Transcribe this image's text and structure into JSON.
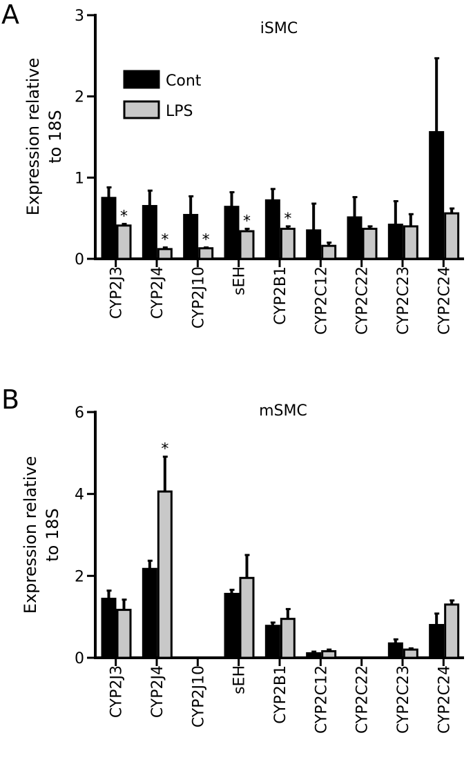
{
  "chart_data": [
    {
      "panel": "A",
      "type": "bar",
      "title": "iSMC",
      "ylabel": "Expression relative to 18S",
      "ylabel_lines": [
        "Expression relative",
        "to 18S"
      ],
      "ylim": [
        0,
        3
      ],
      "yticks": [
        0,
        1,
        2,
        3
      ],
      "categories": [
        "CYP2J3",
        "CYP2J4",
        "CYP2J10",
        "sEH",
        "CYP2B1",
        "CYP2C12",
        "CYP2C22",
        "CYP2C23",
        "CYP2C24"
      ],
      "series": [
        {
          "name": "Cont",
          "color": "#000000",
          "values": [
            0.75,
            0.65,
            0.54,
            0.64,
            0.72,
            0.35,
            0.51,
            0.42,
            1.56
          ],
          "errors": [
            0.13,
            0.19,
            0.23,
            0.18,
            0.14,
            0.33,
            0.25,
            0.29,
            0.91
          ],
          "significant": [
            false,
            false,
            false,
            false,
            false,
            false,
            false,
            false,
            false
          ]
        },
        {
          "name": "LPS",
          "color": "#c8c8c8",
          "values": [
            0.41,
            0.12,
            0.13,
            0.34,
            0.37,
            0.16,
            0.37,
            0.4,
            0.56
          ],
          "errors": [
            0.02,
            0.02,
            0.01,
            0.03,
            0.03,
            0.04,
            0.03,
            0.15,
            0.06
          ],
          "significant": [
            true,
            true,
            true,
            true,
            true,
            false,
            false,
            false,
            false
          ]
        }
      ],
      "significance_marker": "*",
      "legend": {
        "placement": "top-left",
        "entries": [
          "Cont",
          "LPS"
        ]
      }
    },
    {
      "panel": "B",
      "type": "bar",
      "title": "mSMC",
      "ylabel": "Expression relative to 18S",
      "ylabel_lines": [
        "Expression relative",
        "to 18S"
      ],
      "ylim": [
        0,
        6
      ],
      "yticks": [
        0,
        2,
        4,
        6
      ],
      "categories": [
        "CYP2J3",
        "CYP2J4",
        "CYP2J10",
        "sEH",
        "CYP2B1",
        "CYP2C12",
        "CYP2C22",
        "CYP2C23",
        "CYP2C24"
      ],
      "series": [
        {
          "name": "Cont",
          "color": "#000000",
          "values": [
            1.44,
            2.17,
            0,
            1.56,
            0.78,
            0.11,
            0,
            0.35,
            0.8
          ],
          "errors": [
            0.2,
            0.2,
            0,
            0.1,
            0.08,
            0.04,
            0,
            0.1,
            0.28
          ],
          "significant": [
            false,
            false,
            false,
            false,
            false,
            false,
            false,
            false,
            false
          ]
        },
        {
          "name": "LPS",
          "color": "#c8c8c8",
          "values": [
            1.17,
            4.06,
            0,
            1.95,
            0.95,
            0.16,
            0,
            0.2,
            1.3
          ],
          "errors": [
            0.25,
            0.85,
            0,
            0.56,
            0.24,
            0.04,
            0,
            0.03,
            0.1
          ],
          "significant": [
            false,
            true,
            false,
            false,
            false,
            false,
            false,
            false,
            false
          ]
        }
      ],
      "significance_marker": "*",
      "legend": null
    }
  ]
}
